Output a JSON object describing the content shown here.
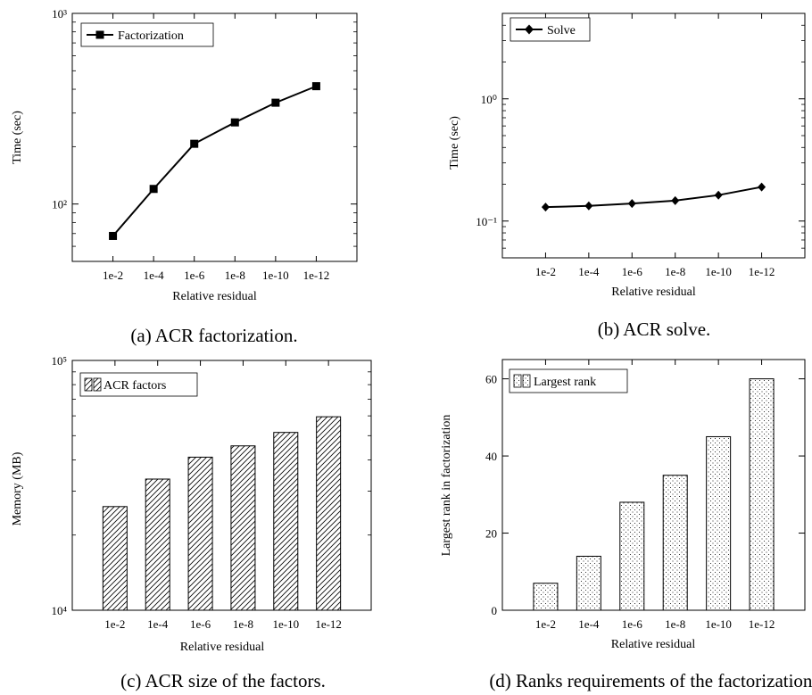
{
  "chart_data": [
    {
      "type": "line",
      "scale": "log",
      "categories": [
        "1e-2",
        "1e-4",
        "1e-6",
        "1e-8",
        "1e-10",
        "1e-12"
      ],
      "series": [
        {
          "name": "Factorization",
          "values": [
            68,
            120,
            207,
            268,
            340,
            415
          ]
        }
      ],
      "ylim": [
        50,
        1000
      ],
      "ytick_labels": [
        {
          "label": "10²",
          "value": 100
        },
        {
          "label": "10³",
          "value": 1000
        }
      ],
      "xlabel": "Relative residual",
      "ylabel": "Time (sec)",
      "legend": "top-left",
      "marker": "square",
      "caption": "(a) ACR factorization."
    },
    {
      "type": "line",
      "scale": "log",
      "categories": [
        "1e-2",
        "1e-4",
        "1e-6",
        "1e-8",
        "1e-10",
        "1e-12"
      ],
      "series": [
        {
          "name": "Solve",
          "values": [
            0.13,
            0.133,
            0.139,
            0.147,
            0.163,
            0.19
          ]
        }
      ],
      "ylim": [
        0.05,
        5
      ],
      "ytick_labels": [
        {
          "label": "10⁻¹",
          "value": 0.1
        },
        {
          "label": "10⁰",
          "value": 1
        }
      ],
      "xlabel": "Relative residual",
      "ylabel": "Time (sec)",
      "legend": "top-left",
      "marker": "diamond",
      "caption": "(b) ACR solve."
    },
    {
      "type": "bar",
      "scale": "log",
      "categories": [
        "1e-2",
        "1e-4",
        "1e-6",
        "1e-8",
        "1e-10",
        "1e-12"
      ],
      "series": [
        {
          "name": "ACR factors",
          "values": [
            26000,
            33500,
            41000,
            45500,
            51500,
            59500
          ]
        }
      ],
      "ylim": [
        10000,
        100000
      ],
      "ytick_labels": [
        {
          "label": "10⁴",
          "value": 10000
        },
        {
          "label": "10⁵",
          "value": 100000
        }
      ],
      "xlabel": "Relative residual",
      "ylabel": "Memory (MB)",
      "legend": "top-left",
      "pattern": "hatch",
      "caption": "(c) ACR size of the factors."
    },
    {
      "type": "bar",
      "scale": "linear",
      "categories": [
        "1e-2",
        "1e-4",
        "1e-6",
        "1e-8",
        "1e-10",
        "1e-12"
      ],
      "series": [
        {
          "name": "Largest rank",
          "values": [
            7,
            14,
            28,
            35,
            45,
            60
          ]
        }
      ],
      "ylim": [
        0,
        65
      ],
      "ytick_labels": [
        {
          "label": "0",
          "value": 0
        },
        {
          "label": "20",
          "value": 20
        },
        {
          "label": "40",
          "value": 40
        },
        {
          "label": "60",
          "value": 60
        }
      ],
      "xlabel": "Relative residual",
      "ylabel": "Largest rank in factorization",
      "legend": "top-left",
      "pattern": "dots",
      "caption": "(d) Ranks requirements of the factorization."
    }
  ]
}
